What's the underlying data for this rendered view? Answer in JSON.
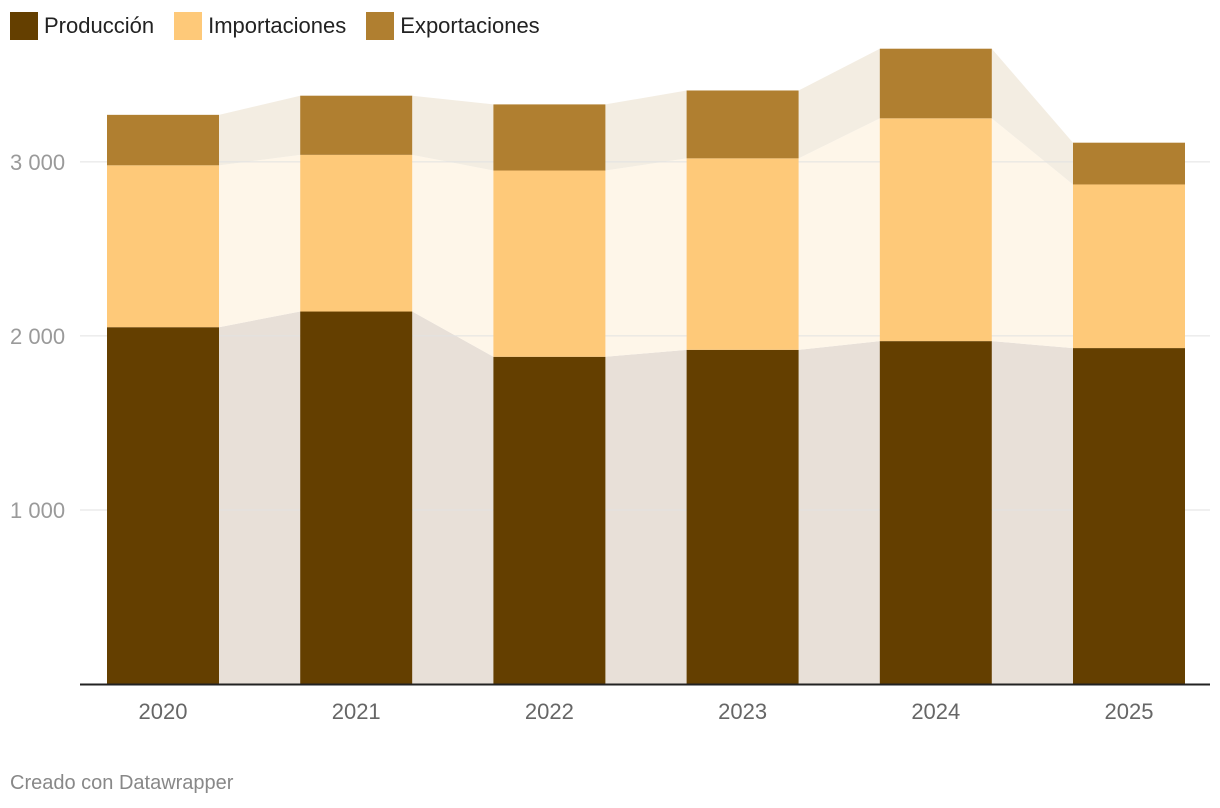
{
  "chart_data": {
    "type": "bar",
    "stacked": true,
    "categories": [
      "2020",
      "2021",
      "2022",
      "2023",
      "2024",
      "2025"
    ],
    "series": [
      {
        "name": "Producción",
        "color": "#643f00",
        "area_color": "#e8e0d8",
        "values": [
          2050,
          2140,
          1880,
          1920,
          1970,
          1930
        ]
      },
      {
        "name": "Importaciones",
        "color": "#fec979",
        "area_color": "#fef6e9",
        "values": [
          930,
          900,
          1070,
          1100,
          1280,
          940
        ]
      },
      {
        "name": "Exportaciones",
        "color": "#b07f30",
        "area_color": "#f3ede2",
        "values": [
          290,
          340,
          380,
          390,
          400,
          240
        ]
      }
    ],
    "y_ticks": [
      {
        "value": 1000,
        "label": "1 000"
      },
      {
        "value": 2000,
        "label": "2 000"
      },
      {
        "value": 3000,
        "label": "3 000"
      }
    ],
    "ylim": [
      0,
      3700
    ],
    "xlabel": "",
    "ylabel": "",
    "grid": true,
    "legend_position": "top-left"
  },
  "footer": {
    "credit": "Creado con Datawrapper"
  }
}
